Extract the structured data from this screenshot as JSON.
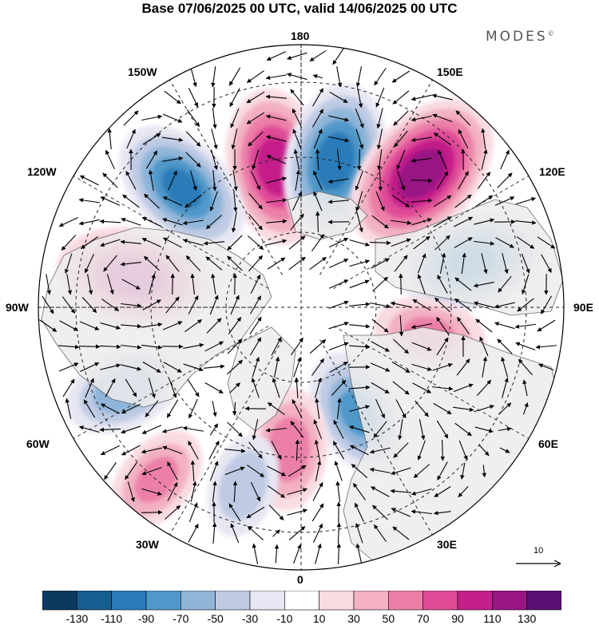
{
  "title": "Base 07/06/2025 00 UTC, valid 14/06/2025 00 UTC",
  "brand": {
    "text": "MODES",
    "mark": "©"
  },
  "longitude_labels": {
    "n180": "180",
    "w150": "150W",
    "e150": "150E",
    "w120": "120W",
    "e120": "120E",
    "w90": "90W",
    "e90": "90E",
    "w60": "60W",
    "e60": "60E",
    "w30": "30W",
    "e30": "30E",
    "s0": "0"
  },
  "reference_vector": {
    "label": "10"
  },
  "colorbar": {
    "colors": [
      "#0b3a5e",
      "#165e8f",
      "#2a7bb8",
      "#4f98c9",
      "#8fb5d9",
      "#bfcbe4",
      "#e7e7f3",
      "#ffffff",
      "#f9dbe2",
      "#f3b1c3",
      "#ec7fa8",
      "#e04b98",
      "#c41f8a",
      "#981584",
      "#5a0f74"
    ],
    "labels": [
      "-130",
      "-110",
      "-90",
      "-70",
      "-50",
      "-30",
      "-10",
      "10",
      "30",
      "50",
      "70",
      "90",
      "110",
      "130"
    ]
  },
  "anomalies": [
    {
      "name": "pos-150W",
      "lat": 52,
      "lon": -170,
      "value": 100
    },
    {
      "name": "neg-165E",
      "lat": 50,
      "lon": 167,
      "value": -100
    },
    {
      "name": "pos-135E",
      "lat": 42,
      "lon": 138,
      "value": 120
    },
    {
      "name": "neg-135W",
      "lat": 45,
      "lon": -135,
      "value": -90
    },
    {
      "name": "pos-100W",
      "lat": 45,
      "lon": -100,
      "value": 100
    },
    {
      "name": "neg-105E",
      "lat": 43,
      "lon": 105,
      "value": -90
    },
    {
      "name": "pos-75E",
      "lat": 55,
      "lon": 78,
      "value": 50
    },
    {
      "name": "neg-65W",
      "lat": 38,
      "lon": -65,
      "value": -60
    },
    {
      "name": "neg-35E",
      "lat": 58,
      "lon": 28,
      "value": -70
    },
    {
      "name": "pos-05W",
      "lat": 52,
      "lon": -5,
      "value": 60
    },
    {
      "name": "pos-40W",
      "lat": 30,
      "lon": -40,
      "value": 50
    },
    {
      "name": "neg-20W",
      "lat": 40,
      "lon": -18,
      "value": -40
    }
  ]
}
